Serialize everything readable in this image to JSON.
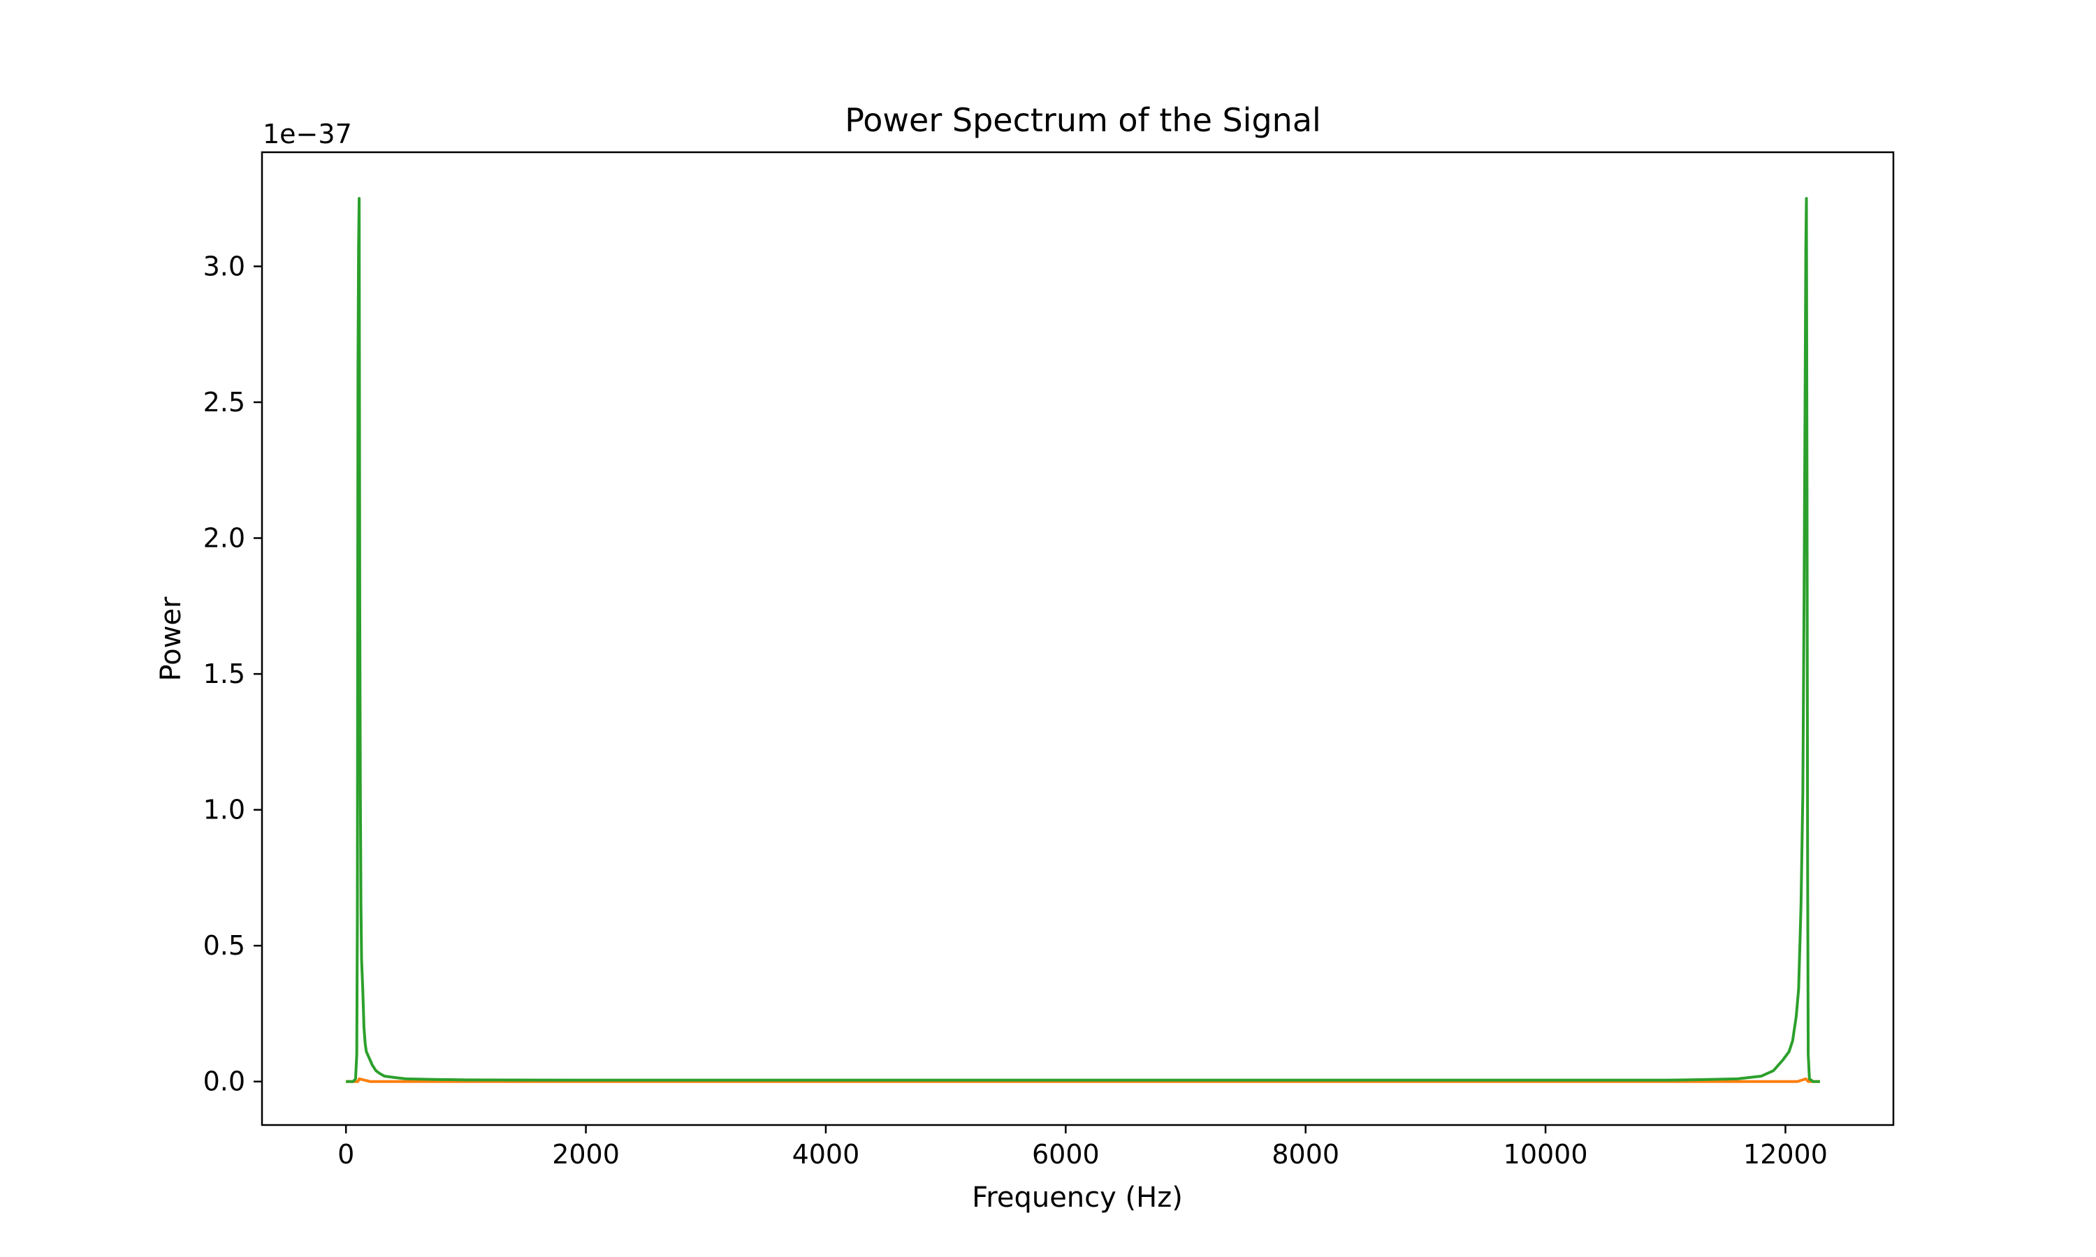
{
  "chart_data": {
    "type": "line",
    "title": "Power Spectrum of the Signal",
    "xlabel": "Frequency (Hz)",
    "ylabel": "Power",
    "y_offset_label": "1e−37",
    "xlim": [
      -700,
      12900
    ],
    "ylim": [
      -0.16,
      3.42
    ],
    "x_ticks": [
      0,
      2000,
      4000,
      6000,
      8000,
      10000,
      12000
    ],
    "x_tick_labels": [
      "0",
      "2000",
      "4000",
      "6000",
      "8000",
      "10000",
      "12000"
    ],
    "y_ticks": [
      0.0,
      0.5,
      1.0,
      1.5,
      2.0,
      2.5,
      3.0
    ],
    "y_tick_labels": [
      "0.0",
      "0.5",
      "1.0",
      "1.5",
      "2.0",
      "2.5",
      "3.0"
    ],
    "grid": false,
    "legend": "none",
    "series": [
      {
        "color": "#ff7f0e",
        "x": [
          0,
          100,
          110,
          200,
          6100,
          12100,
          12170,
          12190,
          12288
        ],
        "y": [
          0,
          0,
          0.01,
          0,
          0,
          0,
          0.01,
          0,
          0
        ]
      },
      {
        "color": "#2ca02c",
        "x": [
          0,
          60,
          80,
          90,
          95,
          100,
          105,
          110,
          115,
          120,
          125,
          130,
          140,
          150,
          160,
          170,
          180,
          200,
          220,
          250,
          280,
          320,
          400,
          500,
          700,
          1000,
          2000,
          3000,
          4000,
          5000,
          6000,
          7000,
          8000,
          9000,
          10000,
          11000,
          11300,
          11600,
          11800,
          11900,
          11980,
          12030,
          12060,
          12090,
          12110,
          12130,
          12145,
          12155,
          12165,
          12170,
          12175,
          12180,
          12185,
          12190,
          12200,
          12230,
          12288
        ],
        "y": [
          0,
          0,
          0.01,
          0.1,
          0.6,
          2.62,
          3.07,
          3.25,
          1.75,
          1.06,
          0.65,
          0.45,
          0.34,
          0.2,
          0.14,
          0.11,
          0.1,
          0.08,
          0.06,
          0.04,
          0.03,
          0.02,
          0.015,
          0.01,
          0.008,
          0.006,
          0.005,
          0.005,
          0.005,
          0.005,
          0.005,
          0.005,
          0.005,
          0.005,
          0.005,
          0.005,
          0.007,
          0.01,
          0.02,
          0.04,
          0.08,
          0.11,
          0.15,
          0.24,
          0.34,
          0.65,
          1.06,
          1.75,
          2.62,
          3.07,
          3.25,
          2.2,
          0.8,
          0.1,
          0.01,
          0,
          0
        ]
      }
    ]
  }
}
